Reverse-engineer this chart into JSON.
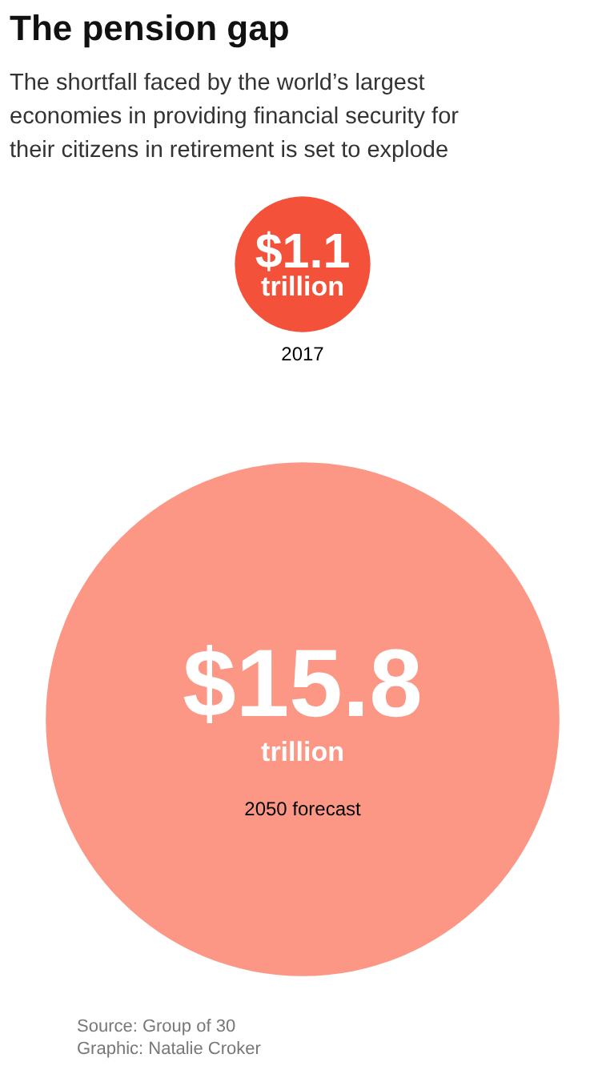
{
  "chart_data": {
    "type": "other",
    "title": "The pension gap",
    "subtitle": "The shortfall faced by the world’s largest economies in providing financial security for their citizens in retirement is set to explode",
    "categories": [
      "2017",
      "2050 forecast"
    ],
    "values": [
      1.1,
      15.8
    ],
    "colors": [
      "#f4513a",
      "#fd9785"
    ],
    "value_labels": [
      "$1.1",
      "$15.8"
    ],
    "annotations": [
      "trillion",
      "trillion",
      "Source: Group of 30",
      "Graphic: Natalie Croker"
    ]
  }
}
